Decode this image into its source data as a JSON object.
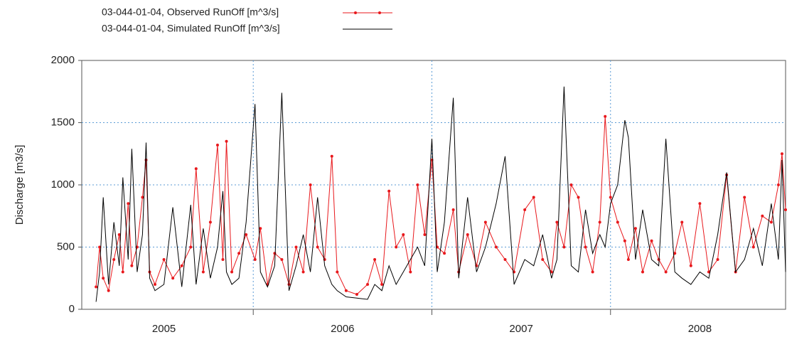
{
  "chart_data": {
    "type": "line",
    "y_label": "Discharge [m3/s]",
    "x": [
      2005.12,
      2005.14,
      2005.16,
      2005.19,
      2005.22,
      2005.25,
      2005.27,
      2005.3,
      2005.32,
      2005.35,
      2005.38,
      2005.4,
      2005.42,
      2005.45,
      2005.5,
      2005.55,
      2005.6,
      2005.65,
      2005.68,
      2005.72,
      2005.76,
      2005.8,
      2005.83,
      2005.85,
      2005.88,
      2005.92,
      2005.96,
      2006.01,
      2006.04,
      2006.08,
      2006.12,
      2006.16,
      2006.2,
      2006.24,
      2006.28,
      2006.32,
      2006.36,
      2006.4,
      2006.44,
      2006.47,
      2006.52,
      2006.58,
      2006.64,
      2006.68,
      2006.72,
      2006.76,
      2006.8,
      2006.84,
      2006.88,
      2006.92,
      2006.96,
      2007.0,
      2007.03,
      2007.07,
      2007.12,
      2007.15,
      2007.2,
      2007.25,
      2007.3,
      2007.36,
      2007.41,
      2007.46,
      2007.52,
      2007.57,
      2007.62,
      2007.67,
      2007.7,
      2007.74,
      2007.78,
      2007.82,
      2007.86,
      2007.9,
      2007.94,
      2007.97,
      2008.0,
      2008.04,
      2008.08,
      2008.1,
      2008.14,
      2008.18,
      2008.23,
      2008.27,
      2008.31,
      2008.36,
      2008.4,
      2008.45,
      2008.5,
      2008.55,
      2008.6,
      2008.65,
      2008.7,
      2008.75,
      2008.8,
      2008.85,
      2008.9,
      2008.94,
      2008.96,
      2008.98
    ],
    "series": [
      {
        "name": "03-044-01-04, Observed RunOff [m^3/s]",
        "color": "#e8181c",
        "markers": true,
        "values": [
          180,
          500,
          250,
          150,
          400,
          600,
          300,
          850,
          350,
          500,
          900,
          1200,
          300,
          200,
          400,
          250,
          350,
          500,
          1130,
          300,
          700,
          1320,
          400,
          1350,
          300,
          450,
          600,
          400,
          650,
          200,
          450,
          400,
          200,
          500,
          300,
          1000,
          500,
          400,
          1230,
          300,
          150,
          120,
          200,
          400,
          200,
          950,
          500,
          600,
          300,
          1000,
          600,
          1200,
          500,
          450,
          800,
          300,
          600,
          350,
          700,
          500,
          400,
          300,
          800,
          900,
          400,
          300,
          700,
          500,
          1000,
          900,
          500,
          300,
          700,
          1550,
          900,
          700,
          550,
          400,
          650,
          300,
          550,
          400,
          300,
          450,
          700,
          350,
          850,
          300,
          400,
          1080,
          300,
          900,
          500,
          750,
          700,
          1000,
          1250,
          800
        ]
      },
      {
        "name": "03-044-01-04, Simulated RunOff [m^3/s]",
        "color": "#000000",
        "markers": false,
        "values": [
          60,
          300,
          900,
          200,
          700,
          350,
          1060,
          400,
          1290,
          300,
          600,
          1340,
          250,
          150,
          200,
          820,
          180,
          840,
          200,
          650,
          250,
          500,
          950,
          300,
          200,
          250,
          700,
          1650,
          300,
          180,
          350,
          1740,
          150,
          350,
          600,
          300,
          900,
          350,
          200,
          150,
          100,
          90,
          80,
          200,
          150,
          350,
          200,
          300,
          400,
          500,
          350,
          1370,
          300,
          700,
          1700,
          250,
          900,
          300,
          500,
          850,
          1230,
          200,
          400,
          350,
          600,
          250,
          400,
          1790,
          350,
          300,
          800,
          450,
          600,
          500,
          850,
          1000,
          1520,
          1380,
          400,
          800,
          400,
          350,
          1370,
          300,
          250,
          200,
          300,
          250,
          600,
          1100,
          300,
          400,
          650,
          350,
          850,
          400,
          1200,
          300
        ]
      }
    ],
    "xlim": [
      2005.04,
      2008.98
    ],
    "xticks": [
      {
        "value": 2005.5,
        "label": "2005"
      },
      {
        "value": 2006.5,
        "label": "2006"
      },
      {
        "value": 2007.5,
        "label": "2007"
      },
      {
        "value": 2008.5,
        "label": "2008"
      }
    ],
    "xgrid": [
      2006,
      2007,
      2008
    ],
    "ylim": [
      0,
      2000
    ],
    "yticks": [
      0,
      500,
      1000,
      1500,
      2000
    ],
    "grid": true
  }
}
